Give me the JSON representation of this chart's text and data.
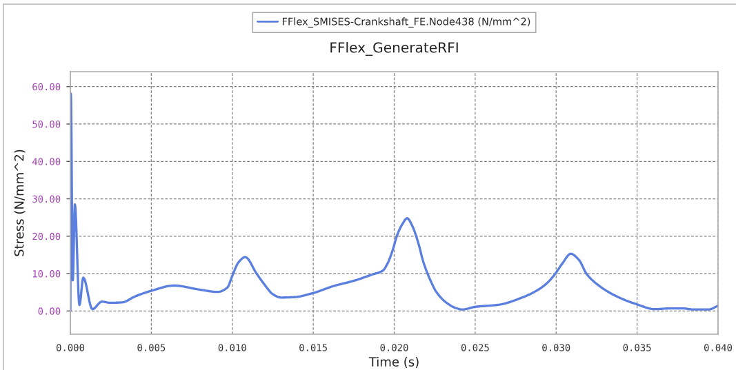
{
  "chart_data": {
    "type": "line",
    "title": "FFlex_GenerateRFI",
    "xlabel": "Time (s)",
    "ylabel": "Stress (N/mm^2)",
    "series": [
      {
        "name": "FFlex_SMISES-Crankshaft_FE.Node438 (N/mm^2)",
        "color": "#5b7fde",
        "x": [
          0,
          3e-05,
          0.00015,
          0.00028,
          0.00056,
          0.0008,
          0.00136,
          0.00195,
          0.00245,
          0.0032,
          0.004,
          0.005,
          0.0064,
          0.008,
          0.0091,
          0.0097,
          0.01,
          0.0104,
          0.0108,
          0.0115,
          0.012,
          0.0125,
          0.013,
          0.0138,
          0.015,
          0.0162,
          0.0176,
          0.0186,
          0.0193,
          0.0196,
          0.0199,
          0.0202,
          0.0205,
          0.0208,
          0.0211,
          0.0215,
          0.0218,
          0.0223,
          0.0226,
          0.0232,
          0.0238,
          0.0242,
          0.025,
          0.0265,
          0.0279,
          0.0287,
          0.0294,
          0.0299,
          0.0304,
          0.0309,
          0.0314,
          0.0319,
          0.0327,
          0.0336,
          0.0349,
          0.0361,
          0.0371,
          0.0378,
          0.0385,
          0.0394,
          0.04
        ],
        "values": [
          0,
          58.1,
          8.2,
          28.5,
          1.6,
          8.9,
          0.5,
          2.5,
          2.2,
          2.3,
          3.9,
          5.4,
          6.8,
          5.7,
          5.1,
          6.3,
          9.4,
          13.1,
          14.4,
          10.0,
          7.0,
          4.5,
          3.6,
          3.7,
          4.8,
          6.6,
          8.2,
          9.7,
          10.8,
          12.8,
          16.2,
          20.5,
          23.2,
          24.8,
          22.9,
          18.0,
          13.1,
          7.6,
          5.1,
          2.3,
          0.8,
          0.4,
          1.1,
          1.7,
          3.6,
          5.2,
          7.3,
          9.7,
          12.8,
          15.3,
          13.7,
          9.8,
          6.6,
          4.2,
          1.9,
          0.5,
          0.7,
          0.7,
          0.4,
          0.4,
          1.4
        ]
      }
    ],
    "xlim": [
      0,
      0.04
    ],
    "ylim": [
      -6.2,
      64
    ],
    "xticks": [
      {
        "value": 0,
        "label": "0.000"
      },
      {
        "value": 0.005,
        "label": "0.005"
      },
      {
        "value": 0.01,
        "label": "0.010"
      },
      {
        "value": 0.015,
        "label": "0.015"
      },
      {
        "value": 0.02,
        "label": "0.020"
      },
      {
        "value": 0.025,
        "label": "0.025"
      },
      {
        "value": 0.03,
        "label": "0.030"
      },
      {
        "value": 0.035,
        "label": "0.035"
      },
      {
        "value": 0.04,
        "label": "0.040"
      }
    ],
    "yticks": [
      {
        "value": 0,
        "label": "0.00"
      },
      {
        "value": 10,
        "label": "10.00"
      },
      {
        "value": 20,
        "label": "20.00"
      },
      {
        "value": 30,
        "label": "30.00"
      },
      {
        "value": 40,
        "label": "40.00"
      },
      {
        "value": 50,
        "label": "50.00"
      },
      {
        "value": 60,
        "label": "60.00"
      }
    ],
    "grid": true,
    "legend": "top",
    "marker": "none",
    "line_style": "solid"
  }
}
